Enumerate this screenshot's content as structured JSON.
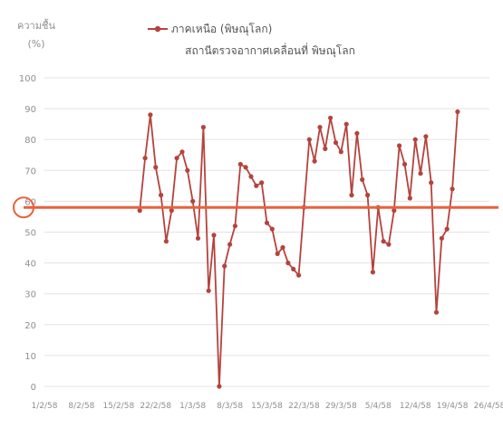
{
  "chart_data": {
    "type": "line",
    "ylabel_line1": "ความชื้น",
    "ylabel_line2": "(%)",
    "series_label": "ภาคเหนือ (พิษณุโลก)",
    "subtitle": "สถานีตรวจอากาศเคลื่อนที่ พิษณุโลก",
    "ylim": [
      0,
      100
    ],
    "yticks": [
      0,
      10,
      20,
      30,
      40,
      50,
      60,
      70,
      80,
      90,
      100
    ],
    "x_tick_labels": [
      "1/2/58",
      "8/2/58",
      "15/2/58",
      "22/2/58",
      "1/3/58",
      "8/3/58",
      "15/3/58",
      "22/3/58",
      "29/3/58",
      "5/4/58",
      "12/4/58",
      "19/4/58",
      "26/4/58"
    ],
    "x_start_day": 0,
    "x_days_span": 84,
    "grid": true,
    "legend_position": "top-center",
    "reference_line": {
      "value": 58
    },
    "series": [
      {
        "name": "ภาคเหนือ (พิษณุโลก)",
        "color": "#b5433d",
        "x": [
          18,
          19,
          20,
          21,
          22,
          23,
          24,
          25,
          26,
          27,
          28,
          29,
          30,
          31,
          32,
          33,
          34,
          35,
          36,
          37,
          38,
          39,
          40,
          41,
          42,
          43,
          44,
          45,
          46,
          47,
          48,
          49,
          50,
          51,
          52,
          53,
          54,
          55,
          56,
          57,
          58,
          59,
          60,
          61,
          62,
          63,
          64,
          65,
          66,
          67,
          68,
          69,
          70,
          71,
          72,
          73,
          74,
          75,
          76,
          77,
          78
        ],
        "values": [
          57,
          74,
          88,
          71,
          62,
          47,
          57,
          74,
          76,
          70,
          60,
          48,
          84,
          31,
          49,
          0,
          39,
          46,
          52,
          72,
          71,
          68,
          65,
          66,
          53,
          51,
          43,
          45,
          40,
          38,
          36,
          58,
          80,
          73,
          84,
          77,
          87,
          79,
          76,
          85,
          62,
          82,
          67,
          62,
          37,
          58,
          47,
          46,
          57,
          78,
          72,
          61,
          80,
          69,
          81,
          66,
          24,
          48,
          51,
          64,
          89
        ]
      }
    ]
  },
  "colors": {
    "line": "#b5433d",
    "reference_line": "#e8613c",
    "grid": "#e3e3e3",
    "tick_text": "#8f8f8f",
    "title_text": "#555555"
  }
}
